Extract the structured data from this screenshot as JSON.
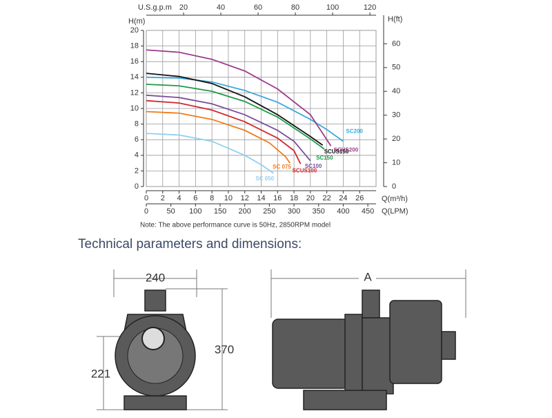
{
  "chart_data": {
    "type": "line",
    "xlabel": "Q(m³/h)",
    "ylabel": "H(m)",
    "y2label": "H(ft)",
    "x2label": "U.S.g.p.m",
    "x3label": "Q(LPM)",
    "xlim": [
      0,
      28
    ],
    "xticks": [
      0,
      2,
      4,
      6,
      8,
      10,
      12,
      14,
      16,
      18,
      20,
      22,
      24,
      26
    ],
    "ylim": [
      0,
      20
    ],
    "yticks": [
      0,
      2,
      4,
      6,
      8,
      10,
      12,
      14,
      16,
      18,
      20
    ],
    "y2lim": [
      0,
      65.62
    ],
    "y2ticks": [
      0,
      10,
      20,
      30,
      40,
      50,
      60
    ],
    "x2lim": [
      0,
      123.3
    ],
    "x2ticks": [
      20,
      40,
      60,
      80,
      100,
      120
    ],
    "x3lim": [
      0,
      466.7
    ],
    "x3ticks": [
      0,
      50,
      100,
      150,
      200,
      250,
      300,
      350,
      400,
      450
    ],
    "grid": true,
    "series": [
      {
        "name": "SC200",
        "color": "#3aa9dd",
        "x": [
          0,
          4,
          8,
          12,
          16,
          20,
          22,
          24
        ],
        "values": [
          14,
          13.9,
          13.4,
          12.3,
          10.8,
          8.6,
          7.3,
          5.8
        ]
      },
      {
        "name": "SCUS200",
        "color": "#9b3d8a",
        "x": [
          0,
          4,
          8,
          12,
          16,
          20,
          22.5
        ],
        "values": [
          17.5,
          17.2,
          16.3,
          14.8,
          12.5,
          9.2,
          5.2
        ]
      },
      {
        "name": "SCUS150",
        "color": "#111111",
        "x": [
          0,
          4,
          8,
          12,
          16,
          20,
          21.5
        ],
        "values": [
          14.5,
          14.1,
          13.2,
          11.5,
          9.2,
          6.4,
          5.3
        ]
      },
      {
        "name": "SC150",
        "color": "#1d9a48",
        "x": [
          0,
          4,
          8,
          12,
          16,
          20,
          21.7
        ],
        "values": [
          13.1,
          12.9,
          12.2,
          10.9,
          8.9,
          6.1,
          4.8
        ]
      },
      {
        "name": "SC100",
        "color": "#7a4d9c",
        "x": [
          0,
          4,
          8,
          12,
          16,
          18,
          20
        ],
        "values": [
          11.7,
          11.4,
          10.6,
          9.2,
          7.2,
          5.8,
          3.3
        ]
      },
      {
        "name": "SCUS100",
        "color": "#d2262b",
        "x": [
          0,
          4,
          8,
          12,
          16,
          18,
          18.8
        ],
        "values": [
          11,
          10.7,
          9.8,
          8.3,
          6.2,
          4.6,
          2.9
        ]
      },
      {
        "name": "SC 075",
        "color": "#f07a1a",
        "x": [
          0,
          4,
          8,
          12,
          15,
          17,
          17.5
        ],
        "values": [
          9.6,
          9.4,
          8.6,
          7.2,
          5.6,
          3.8,
          3
        ]
      },
      {
        "name": "SC 050",
        "color": "#8fd0f0",
        "x": [
          0,
          4,
          8,
          12,
          14,
          15.5
        ],
        "values": [
          6.8,
          6.6,
          5.8,
          4,
          2.8,
          1.7
        ]
      }
    ]
  },
  "note": "Note: The above performance curve is 50Hz, 2850RPM model",
  "heading": "Technical parameters and dimensions:",
  "dimensions": {
    "width": "240",
    "height": "370",
    "axis_height": "221",
    "length": "A"
  }
}
